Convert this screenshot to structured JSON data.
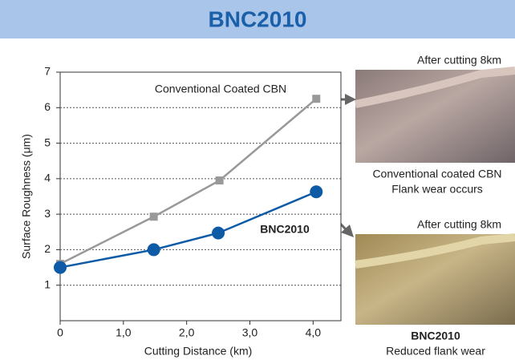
{
  "chart_data": {
    "type": "line",
    "title": "BNC2010",
    "xlabel": "Cutting Distance (km)",
    "ylabel": "Surface Roughness (μm)",
    "xlim": [
      0,
      4.44
    ],
    "ylim": [
      0,
      7
    ],
    "xticks": [
      0,
      {
        "value": 1,
        "label": "1,0"
      },
      {
        "value": 2,
        "label": "2,0"
      },
      {
        "value": 3,
        "label": "3,0"
      },
      {
        "value": 4,
        "label": "4,0"
      }
    ],
    "yticks": [
      1,
      2,
      3,
      4,
      5,
      6,
      7
    ],
    "grid": true,
    "series": [
      {
        "name": "Conventional Coated CBN",
        "color": "#999999",
        "marker": "square",
        "x": [
          0,
          1.48,
          2.52,
          4.05
        ],
        "values": [
          1.6,
          2.93,
          3.95,
          6.25
        ]
      },
      {
        "name": "BNC2010",
        "color": "#0d5aa7",
        "marker": "circle",
        "x": [
          0,
          1.48,
          2.5,
          4.05
        ],
        "values": [
          1.5,
          2.0,
          2.47,
          3.63
        ]
      }
    ],
    "photos": [
      {
        "caption_top": "After cutting 8km",
        "caption_1": "Conventional coated CBN",
        "caption_2": "Flank wear occurs"
      },
      {
        "caption_top": "After cutting 8km",
        "caption_1": "BNC2010",
        "caption_2": "Reduced flank wear"
      }
    ]
  }
}
